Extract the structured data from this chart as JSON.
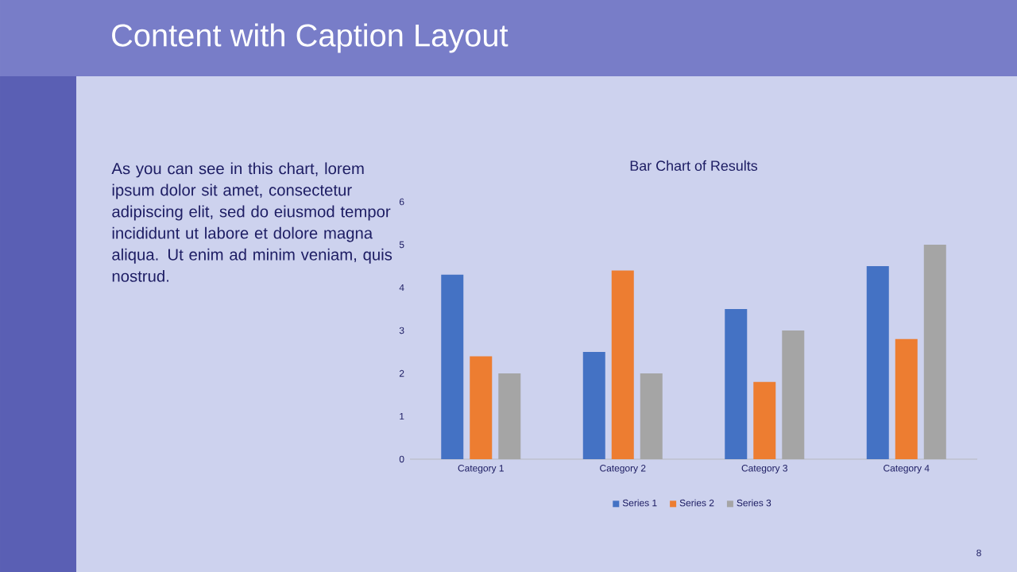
{
  "chart_data": {
    "type": "bar",
    "title": "Bar Chart of Results",
    "categories": [
      "Category 1",
      "Category 2",
      "Category 3",
      "Category 4"
    ],
    "series": [
      {
        "name": "Series 1",
        "color": "#4472c4",
        "values": [
          4.3,
          2.5,
          3.5,
          4.5
        ]
      },
      {
        "name": "Series 2",
        "color": "#ed7d31",
        "values": [
          2.4,
          4.4,
          1.8,
          2.8
        ]
      },
      {
        "name": "Series 3",
        "color": "#a5a5a5",
        "values": [
          2,
          2,
          3,
          5
        ]
      }
    ],
    "ylim": [
      0,
      6
    ],
    "yticks": [
      0,
      1,
      2,
      3,
      4,
      5,
      6
    ],
    "legend": "bottom",
    "annotations": [
      "Content with Caption Layout",
      "As you can see in this chart, lorem ipsum dolor sit amet, consectetur adipiscing elit, sed do eiusmod tempor incididunt ut labore et dolore magna aliqua. Ut enim ad minim veniam, quis nostrud.",
      "8"
    ]
  }
}
